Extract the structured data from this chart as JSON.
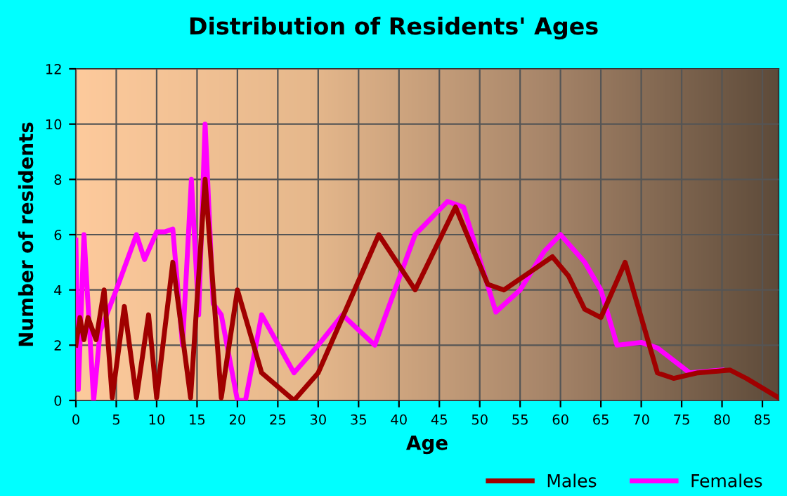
{
  "chart_data": {
    "type": "line",
    "title": "Distribution of Residents' Ages",
    "xlabel": "Age",
    "ylabel": "Number of residents",
    "xlim": [
      0,
      87
    ],
    "ylim": [
      0,
      12
    ],
    "xticks": [
      0,
      5,
      10,
      15,
      20,
      25,
      30,
      35,
      40,
      45,
      50,
      55,
      60,
      65,
      70,
      75,
      80,
      85
    ],
    "yticks": [
      0,
      2,
      4,
      6,
      8,
      10,
      12
    ],
    "grid": true,
    "legend": "bottom",
    "marker": "none",
    "line_style": "solid",
    "series": [
      {
        "name": "Males",
        "color": "#a00000",
        "x": [
          0,
          0.5,
          1,
          1.5,
          2.5,
          3.5,
          4.5,
          6,
          7.5,
          9,
          10,
          12,
          14.2,
          16,
          18,
          20,
          21,
          23,
          27,
          30,
          33,
          37.5,
          42,
          47,
          51,
          53,
          59,
          61,
          63,
          65,
          68,
          70,
          72,
          74,
          77,
          81,
          83,
          87
        ],
        "values": [
          2,
          3,
          2.2,
          3,
          2.2,
          4,
          0.1,
          3.4,
          0.1,
          3.1,
          0.1,
          5,
          0.1,
          8,
          0.1,
          4,
          3,
          1,
          0,
          1,
          3,
          6,
          4,
          7,
          4.2,
          4,
          5.2,
          4.5,
          3.3,
          3,
          5,
          3,
          1,
          0.8,
          1,
          1.1,
          0.8,
          0.1
        ]
      },
      {
        "name": "Females",
        "color": "#ff00ff",
        "x": [
          0,
          0.3,
          1,
          2.2,
          3,
          5,
          7.5,
          8.5,
          10,
          11,
          12,
          13.2,
          14.3,
          15.2,
          16,
          17,
          18,
          20,
          21,
          23,
          27,
          30,
          33,
          37,
          42,
          46,
          48,
          52,
          55,
          58,
          60,
          63,
          65,
          67,
          70,
          72,
          76,
          80
        ],
        "values": [
          5.8,
          0.4,
          6,
          0,
          2.5,
          4,
          6,
          5.1,
          6.1,
          6.1,
          6.2,
          2,
          8,
          3.1,
          10,
          3.5,
          3.1,
          0,
          0,
          3.1,
          1,
          2,
          3.1,
          2,
          6,
          7.2,
          7,
          3.2,
          4,
          5.4,
          6,
          5,
          4,
          2,
          2.1,
          1.9,
          1,
          1.1
        ]
      }
    ]
  }
}
